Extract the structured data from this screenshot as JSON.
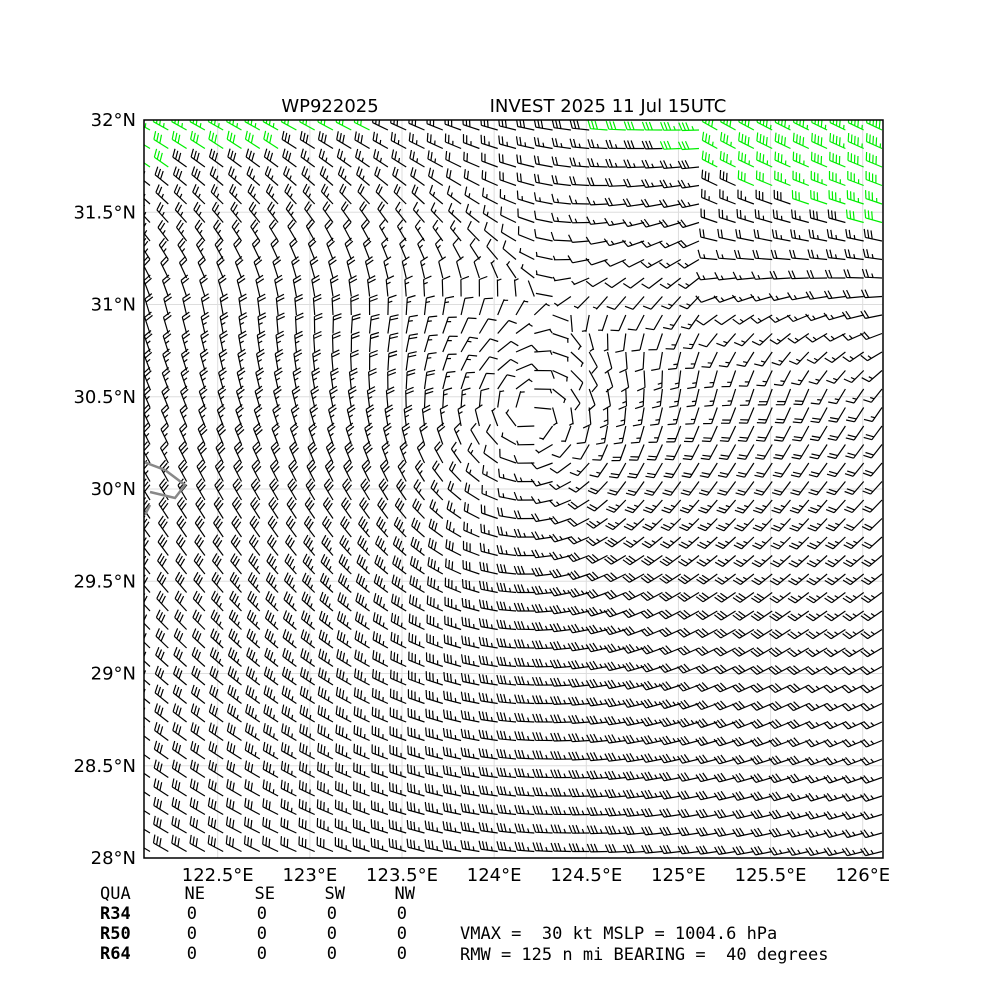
{
  "map": {
    "title_left": "WP922025",
    "title_right": "INVEST 2025 11 Jul 15UTC",
    "xlim": [
      122.1,
      126.11
    ],
    "ylim": [
      28,
      32
    ],
    "xticks": [
      {
        "value": 122.5,
        "label": "122.5°E"
      },
      {
        "value": 123,
        "label": "123°E"
      },
      {
        "value": 123.5,
        "label": "123.5°E"
      },
      {
        "value": 124,
        "label": "124°E"
      },
      {
        "value": 124.5,
        "label": "124.5°E"
      },
      {
        "value": 125,
        "label": "125°E"
      },
      {
        "value": 125.5,
        "label": "125.5°E"
      },
      {
        "value": 126,
        "label": "126°E"
      }
    ],
    "yticks": [
      {
        "value": 28,
        "label": "28°N"
      },
      {
        "value": 28.5,
        "label": "28.5°N"
      },
      {
        "value": 29,
        "label": "29°N"
      },
      {
        "value": 29.5,
        "label": "29.5°N"
      },
      {
        "value": 30,
        "label": "30°N"
      },
      {
        "value": 30.5,
        "label": "30.5°N"
      },
      {
        "value": 31,
        "label": "31°N"
      },
      {
        "value": 31.5,
        "label": "31.5°N"
      },
      {
        "value": 32,
        "label": "32°N"
      }
    ],
    "grid": true
  },
  "table": {
    "header": [
      "QUA",
      "NE",
      "SE",
      "SW",
      "NW"
    ],
    "rows": [
      [
        "R34",
        0,
        0,
        0,
        0
      ],
      [
        "R50",
        0,
        0,
        0,
        0
      ],
      [
        "R64",
        0,
        0,
        0,
        0
      ]
    ]
  },
  "info": [
    "VMAX =  30 kt MSLP = 1004.6 hPa",
    "RMW = 125 n mi BEARING =  40 degrees"
  ]
}
